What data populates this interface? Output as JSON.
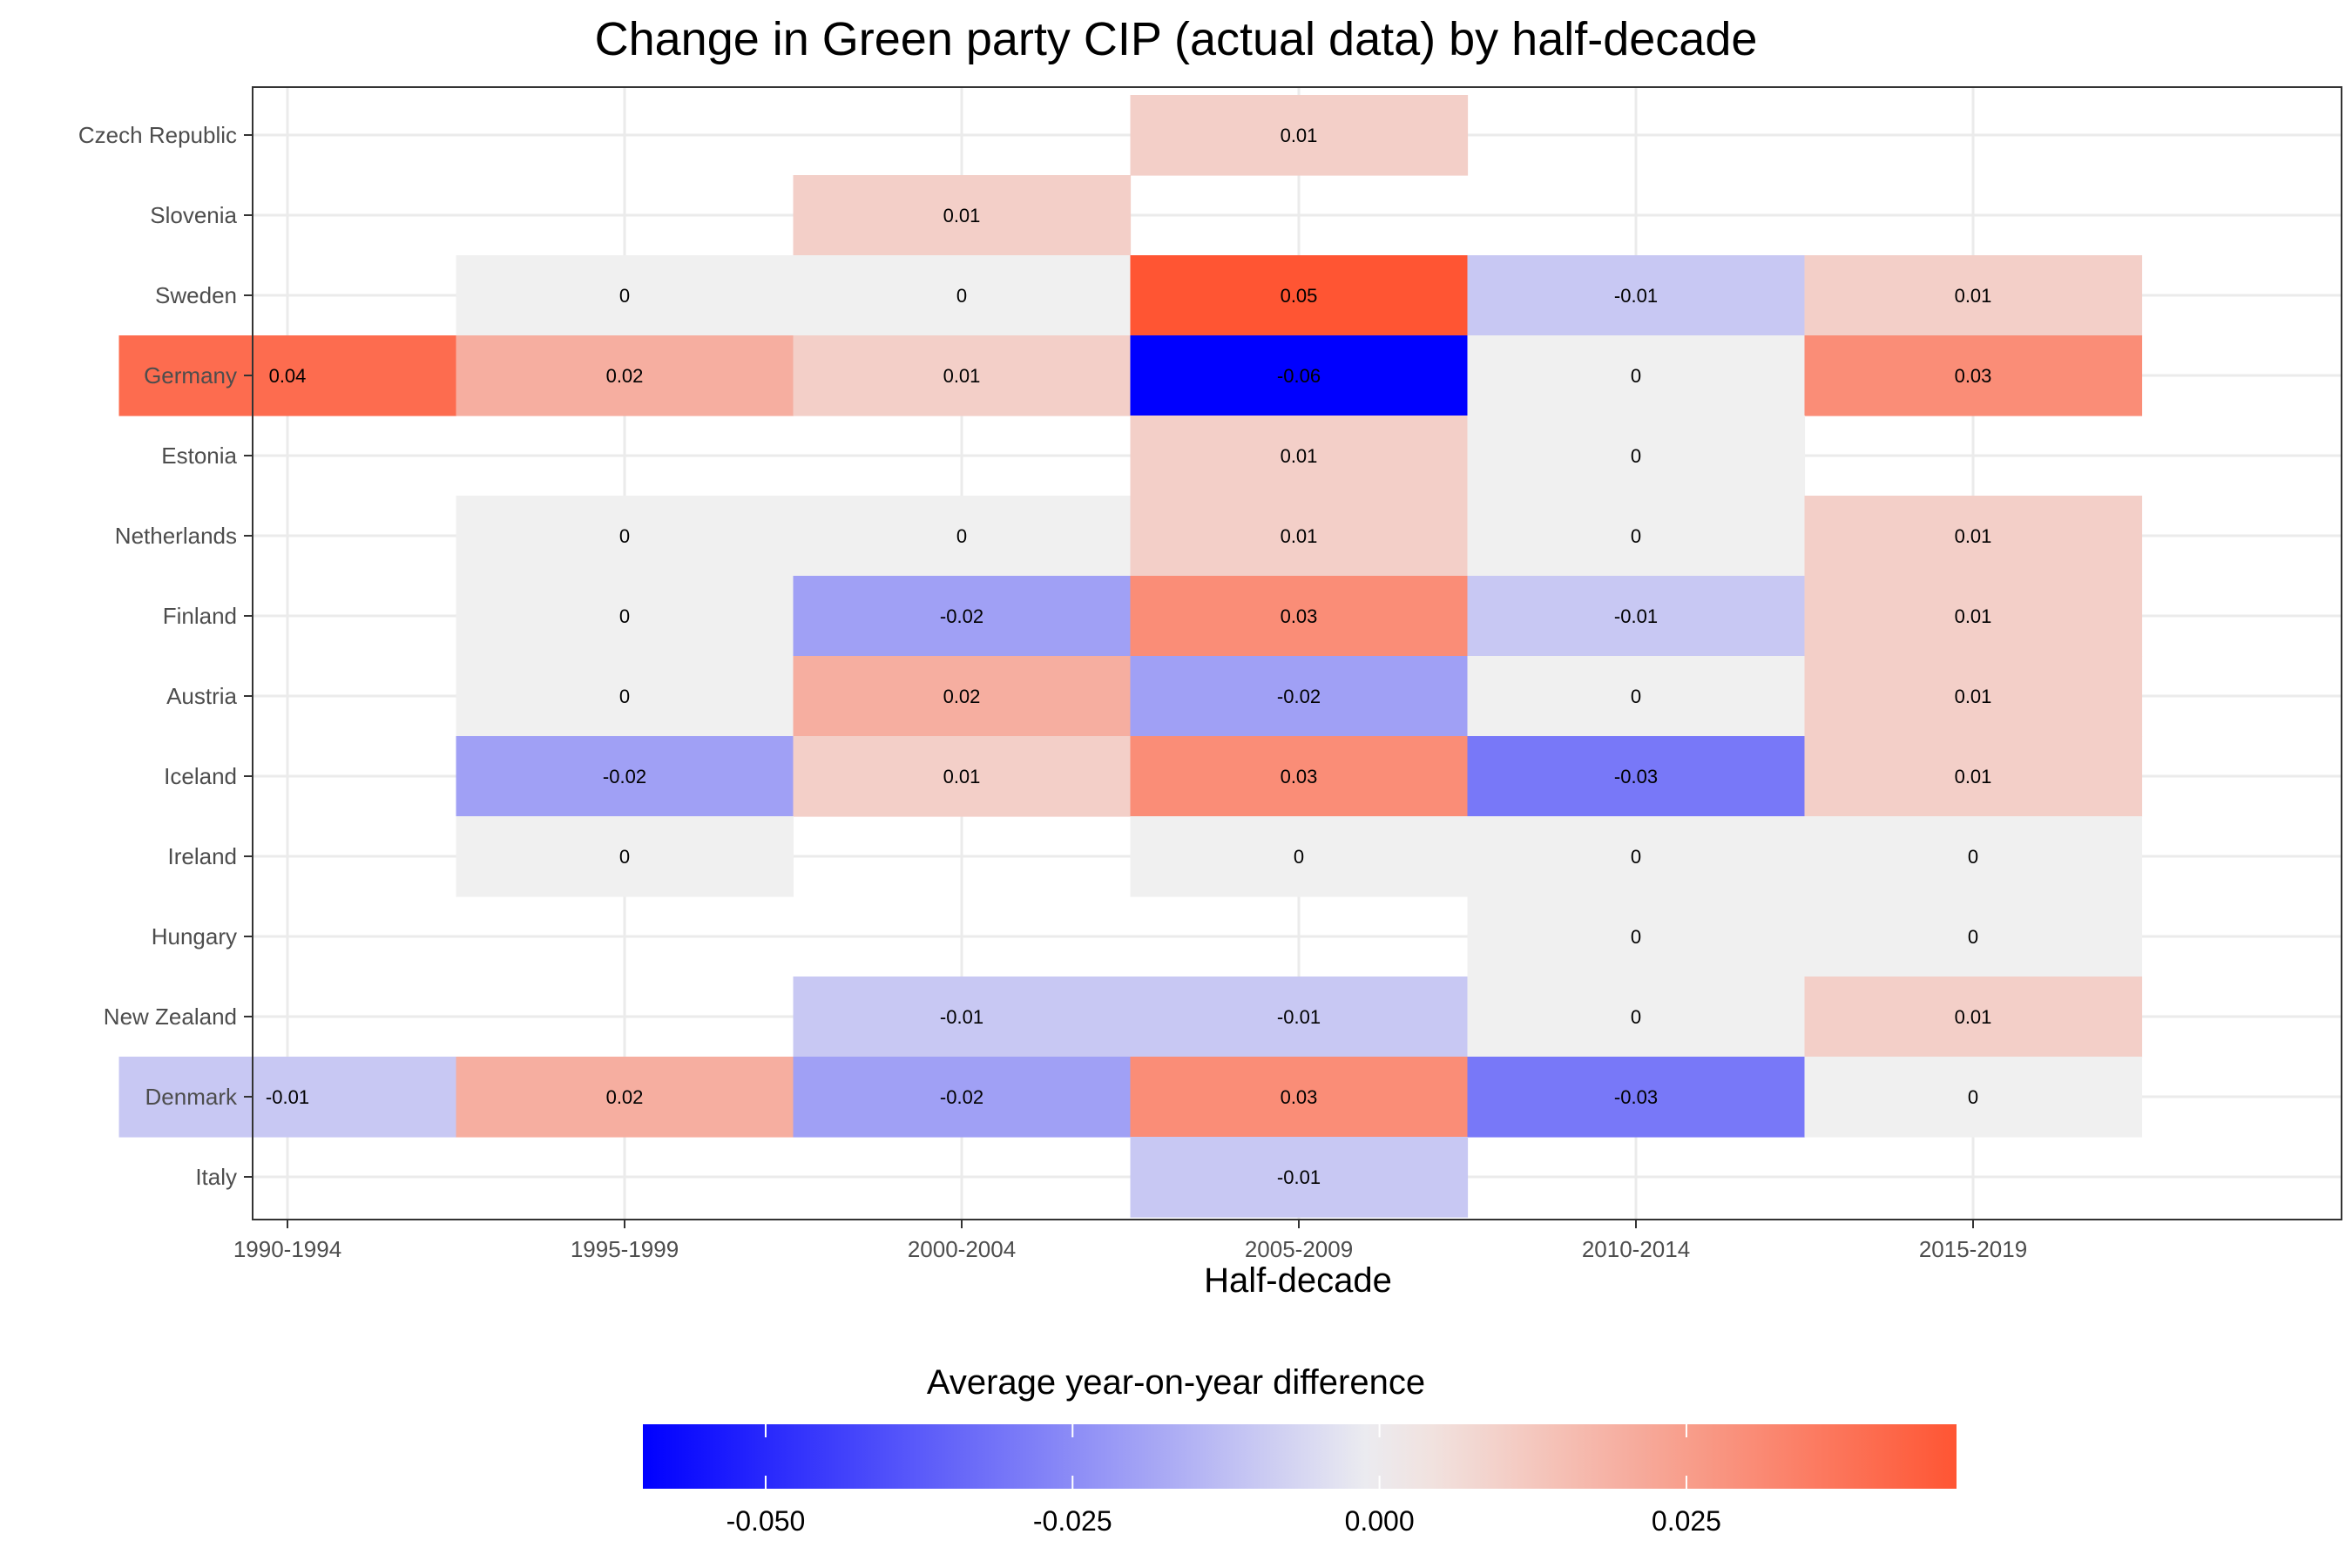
{
  "chart_data": {
    "type": "heatmap",
    "title": "Change in Green party CIP (actual data) by half-decade",
    "xlabel": "Half-decade",
    "ylabel": "",
    "x_categories": [
      "1990-1994",
      "1995-1999",
      "2000-2004",
      "2005-2009",
      "2010-2014",
      "2015-2019"
    ],
    "y_categories": [
      "Czech Republic",
      "Slovenia",
      "Sweden",
      "Germany",
      "Estonia",
      "Netherlands",
      "Finland",
      "Austria",
      "Iceland",
      "Ireland",
      "Hungary",
      "New Zealand",
      "Denmark",
      "Italy"
    ],
    "cells": [
      {
        "country": "Czech Republic",
        "period": "2005-2009",
        "value": 0.01
      },
      {
        "country": "Slovenia",
        "period": "2000-2004",
        "value": 0.01
      },
      {
        "country": "Sweden",
        "period": "1995-1999",
        "value": 0
      },
      {
        "country": "Sweden",
        "period": "2000-2004",
        "value": 0
      },
      {
        "country": "Sweden",
        "period": "2005-2009",
        "value": 0.05
      },
      {
        "country": "Sweden",
        "period": "2010-2014",
        "value": -0.01
      },
      {
        "country": "Sweden",
        "period": "2015-2019",
        "value": 0.01
      },
      {
        "country": "Germany",
        "period": "1990-1994",
        "value": 0.04
      },
      {
        "country": "Germany",
        "period": "1995-1999",
        "value": 0.02
      },
      {
        "country": "Germany",
        "period": "2000-2004",
        "value": 0.01
      },
      {
        "country": "Germany",
        "period": "2005-2009",
        "value": -0.06
      },
      {
        "country": "Germany",
        "period": "2010-2014",
        "value": 0
      },
      {
        "country": "Germany",
        "period": "2015-2019",
        "value": 0.03
      },
      {
        "country": "Estonia",
        "period": "2005-2009",
        "value": 0.01
      },
      {
        "country": "Estonia",
        "period": "2010-2014",
        "value": 0
      },
      {
        "country": "Netherlands",
        "period": "1995-1999",
        "value": 0
      },
      {
        "country": "Netherlands",
        "period": "2000-2004",
        "value": 0
      },
      {
        "country": "Netherlands",
        "period": "2005-2009",
        "value": 0.01
      },
      {
        "country": "Netherlands",
        "period": "2010-2014",
        "value": 0
      },
      {
        "country": "Netherlands",
        "period": "2015-2019",
        "value": 0.01
      },
      {
        "country": "Finland",
        "period": "1995-1999",
        "value": 0
      },
      {
        "country": "Finland",
        "period": "2000-2004",
        "value": -0.02
      },
      {
        "country": "Finland",
        "period": "2005-2009",
        "value": 0.03
      },
      {
        "country": "Finland",
        "period": "2010-2014",
        "value": -0.01
      },
      {
        "country": "Finland",
        "period": "2015-2019",
        "value": 0.01
      },
      {
        "country": "Austria",
        "period": "1995-1999",
        "value": 0
      },
      {
        "country": "Austria",
        "period": "2000-2004",
        "value": 0.02
      },
      {
        "country": "Austria",
        "period": "2005-2009",
        "value": -0.02
      },
      {
        "country": "Austria",
        "period": "2010-2014",
        "value": 0
      },
      {
        "country": "Austria",
        "period": "2015-2019",
        "value": 0.01
      },
      {
        "country": "Iceland",
        "period": "1995-1999",
        "value": -0.02
      },
      {
        "country": "Iceland",
        "period": "2000-2004",
        "value": 0.01
      },
      {
        "country": "Iceland",
        "period": "2005-2009",
        "value": 0.03
      },
      {
        "country": "Iceland",
        "period": "2010-2014",
        "value": -0.03
      },
      {
        "country": "Iceland",
        "period": "2015-2019",
        "value": 0.01
      },
      {
        "country": "Ireland",
        "period": "1995-1999",
        "value": 0
      },
      {
        "country": "Ireland",
        "period": "2005-2009",
        "value": 0
      },
      {
        "country": "Ireland",
        "period": "2010-2014",
        "value": 0
      },
      {
        "country": "Ireland",
        "period": "2015-2019",
        "value": 0
      },
      {
        "country": "Hungary",
        "period": "2010-2014",
        "value": 0
      },
      {
        "country": "Hungary",
        "period": "2015-2019",
        "value": 0
      },
      {
        "country": "New Zealand",
        "period": "2000-2004",
        "value": -0.01
      },
      {
        "country": "New Zealand",
        "period": "2005-2009",
        "value": -0.01
      },
      {
        "country": "New Zealand",
        "period": "2010-2014",
        "value": 0
      },
      {
        "country": "New Zealand",
        "period": "2015-2019",
        "value": 0.01
      },
      {
        "country": "Denmark",
        "period": "1990-1994",
        "value": -0.01
      },
      {
        "country": "Denmark",
        "period": "1995-1999",
        "value": 0.02
      },
      {
        "country": "Denmark",
        "period": "2000-2004",
        "value": -0.02
      },
      {
        "country": "Denmark",
        "period": "2005-2009",
        "value": 0.03
      },
      {
        "country": "Denmark",
        "period": "2010-2014",
        "value": -0.03
      },
      {
        "country": "Denmark",
        "period": "2015-2019",
        "value": 0
      },
      {
        "country": "Italy",
        "period": "2005-2009",
        "value": -0.01
      }
    ],
    "colorscale": {
      "low": "#0000ff",
      "mid": "#f0f0f0",
      "high": "#ff5533",
      "limits": [
        -0.06,
        0.047
      ]
    },
    "legend": {
      "title": "Average year-on-year difference",
      "placement": "bottom",
      "ticks": [
        -0.05,
        -0.025,
        0,
        0.025
      ],
      "tick_labels": [
        "-0.050",
        "-0.025",
        "0.000",
        "0.025"
      ]
    },
    "grid": true
  }
}
